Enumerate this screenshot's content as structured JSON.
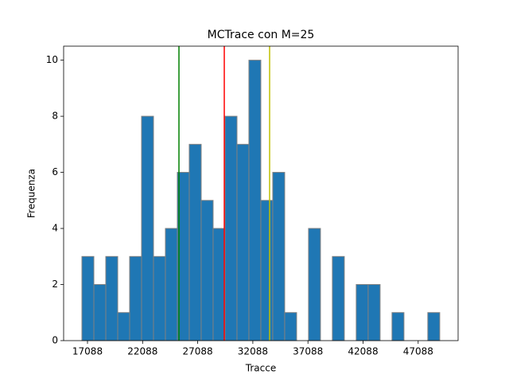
{
  "chart_data": {
    "type": "histogram",
    "title": "MCTrace con M=25",
    "x_label": "Tracce",
    "y_label": "Frequenza",
    "bins": [
      16583,
      17665,
      18747,
      19829,
      20911,
      21993,
      23075,
      24157,
      25239,
      26321,
      27403,
      28485,
      29567,
      30649,
      31731,
      32813,
      33895,
      34977,
      36059,
      37141,
      38223,
      39305,
      40387,
      41469,
      42551,
      43633,
      44715,
      45797,
      46879,
      47961,
      49043
    ],
    "counts": [
      3,
      2,
      3,
      1,
      3,
      8,
      3,
      4,
      6,
      7,
      5,
      4,
      8,
      7,
      10,
      5,
      6,
      1,
      0,
      4,
      0,
      3,
      0,
      2,
      2,
      0,
      1,
      0,
      0,
      1
    ],
    "color": "#1f77b4",
    "edgecolor": "#808080",
    "vlines": [
      {
        "x": 25385,
        "color": "#008000"
      },
      {
        "x": 29498,
        "color": "#ff0000"
      },
      {
        "x": 33610,
        "color": "#bfbf00"
      }
    ],
    "xlim": [
      14923,
      50710
    ],
    "ylim": [
      0,
      10.5
    ],
    "xticks": [
      17088,
      22088,
      27088,
      32088,
      37088,
      42088,
      47088
    ],
    "yticks": [
      0,
      2,
      4,
      6,
      8,
      10
    ]
  }
}
